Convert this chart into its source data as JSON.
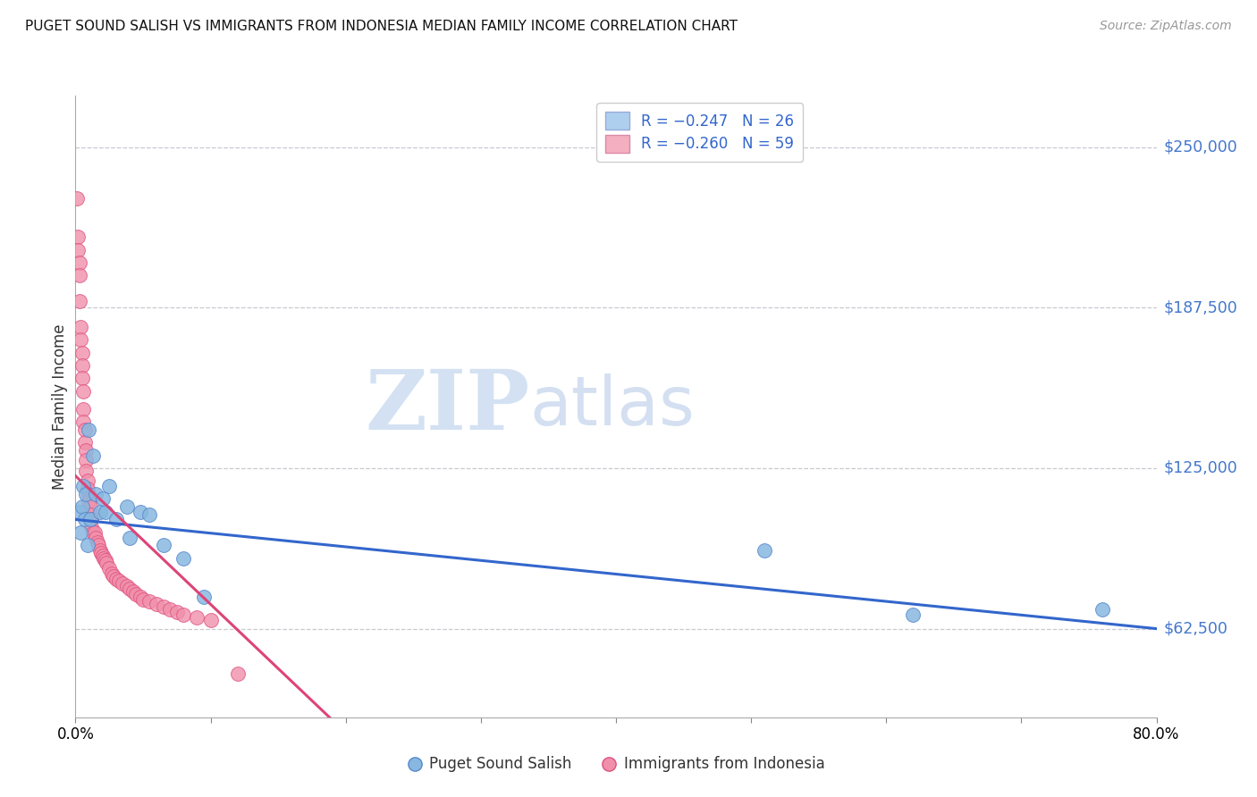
{
  "title": "PUGET SOUND SALISH VS IMMIGRANTS FROM INDONESIA MEDIAN FAMILY INCOME CORRELATION CHART",
  "source": "Source: ZipAtlas.com",
  "ylabel": "Median Family Income",
  "yticks": [
    62500,
    125000,
    187500,
    250000
  ],
  "ytick_labels": [
    "$62,500",
    "$125,000",
    "$187,500",
    "$250,000"
  ],
  "xlim": [
    0.0,
    0.8
  ],
  "ylim": [
    28000,
    270000
  ],
  "watermark_zip": "ZIP",
  "watermark_atlas": "atlas",
  "legend_label1": "R = −0.247   N = 26",
  "legend_label2": "R = −0.260   N = 59",
  "legend_color1": "#aed0ee",
  "legend_color2": "#f4afc0",
  "series1_label": "Puget Sound Salish",
  "series2_label": "Immigrants from Indonesia",
  "series1_color": "#88b8e0",
  "series2_color": "#f090aa",
  "series1_edge": "#5588cc",
  "series2_edge": "#e05080",
  "trendline1_color": "#3366cc",
  "trendline2_color": "#dd4477",
  "trendline2_dash_color": "#ccbbcc",
  "series1_x": [
    0.003,
    0.004,
    0.005,
    0.006,
    0.007,
    0.008,
    0.009,
    0.01,
    0.011,
    0.013,
    0.015,
    0.018,
    0.02,
    0.022,
    0.025,
    0.03,
    0.038,
    0.04,
    0.048,
    0.055,
    0.065,
    0.08,
    0.095,
    0.51,
    0.62,
    0.76
  ],
  "series1_y": [
    108000,
    100000,
    110000,
    118000,
    105000,
    115000,
    95000,
    140000,
    105000,
    130000,
    115000,
    108000,
    113000,
    108000,
    118000,
    105000,
    110000,
    98000,
    108000,
    107000,
    95000,
    90000,
    75000,
    93000,
    68000,
    70000
  ],
  "series2_x": [
    0.001,
    0.002,
    0.002,
    0.003,
    0.003,
    0.003,
    0.004,
    0.004,
    0.005,
    0.005,
    0.005,
    0.006,
    0.006,
    0.006,
    0.007,
    0.007,
    0.008,
    0.008,
    0.008,
    0.009,
    0.009,
    0.01,
    0.01,
    0.011,
    0.011,
    0.012,
    0.012,
    0.013,
    0.014,
    0.015,
    0.016,
    0.017,
    0.018,
    0.019,
    0.02,
    0.021,
    0.022,
    0.023,
    0.025,
    0.027,
    0.028,
    0.03,
    0.032,
    0.035,
    0.038,
    0.04,
    0.043,
    0.045,
    0.048,
    0.05,
    0.055,
    0.06,
    0.065,
    0.07,
    0.075,
    0.08,
    0.09,
    0.1,
    0.12
  ],
  "series2_y": [
    230000,
    215000,
    210000,
    205000,
    200000,
    190000,
    180000,
    175000,
    170000,
    165000,
    160000,
    155000,
    148000,
    143000,
    140000,
    135000,
    132000,
    128000,
    124000,
    120000,
    117000,
    115000,
    112000,
    110000,
    107000,
    105000,
    102000,
    100000,
    100000,
    98000,
    96000,
    95000,
    93000,
    92000,
    91000,
    90000,
    89000,
    88000,
    86000,
    84000,
    83000,
    82000,
    81000,
    80000,
    79000,
    78000,
    77000,
    76000,
    75000,
    74000,
    73000,
    72000,
    71000,
    70000,
    69000,
    68000,
    67000,
    66000,
    45000
  ],
  "trendline1_x0": 0.0,
  "trendline1_y0": 105000,
  "trendline1_x1": 0.8,
  "trendline1_y1": 62500,
  "trendline2_x0": 0.0,
  "trendline2_y0": 122000,
  "trendline2_x_solid_end": 0.22,
  "trendline2_x_dash_end": 0.7,
  "trendline2_slope": -500000
}
